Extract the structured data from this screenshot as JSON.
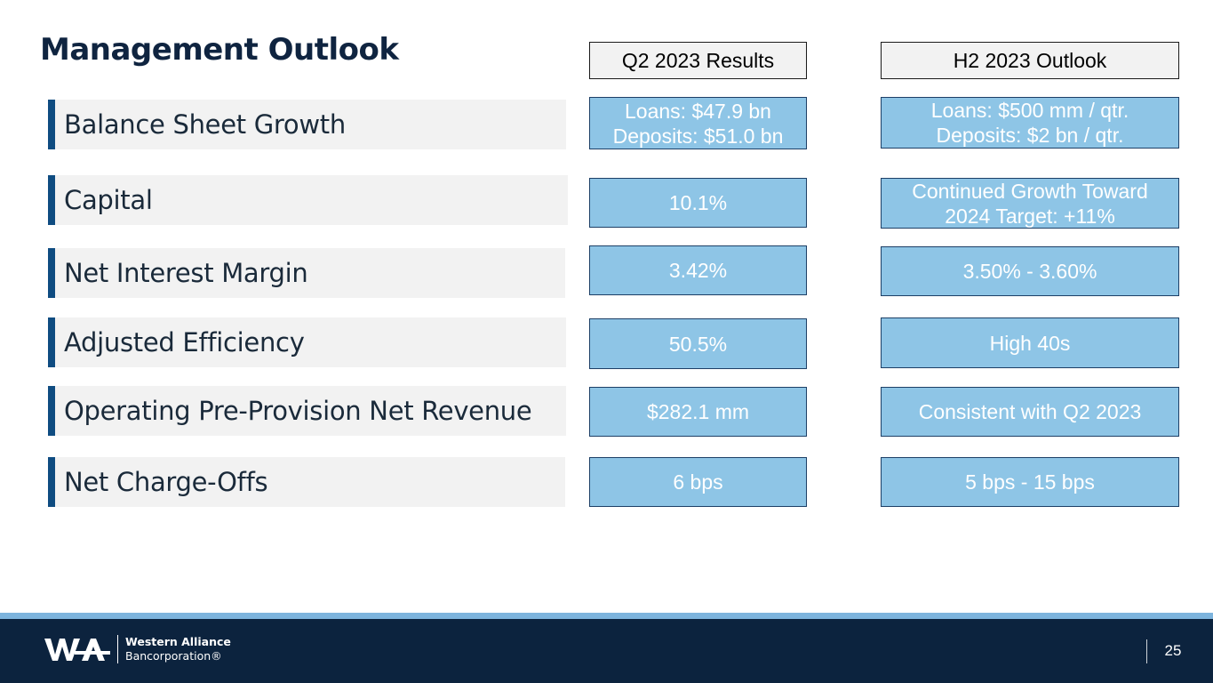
{
  "title": "Management Outlook",
  "columns": {
    "results": "Q2 2023 Results",
    "outlook": "H2 2023 Outlook"
  },
  "rows": [
    {
      "label": "Balance Sheet Growth",
      "results": [
        "Loans: $47.9 bn",
        "Deposits: $51.0 bn"
      ],
      "outlook": [
        "Loans: $500 mm / qtr.",
        "Deposits: $2 bn / qtr."
      ]
    },
    {
      "label": "Capital",
      "results": [
        "10.1%"
      ],
      "outlook": [
        "Continued Growth Toward",
        "2024 Target: +11%"
      ]
    },
    {
      "label": "Net Interest Margin",
      "results": [
        "3.42%"
      ],
      "outlook": [
        "3.50% - 3.60%"
      ]
    },
    {
      "label": "Adjusted Efficiency",
      "results": [
        "50.5%"
      ],
      "outlook": [
        "High 40s"
      ]
    },
    {
      "label": "Operating Pre-Provision Net Revenue",
      "results": [
        "$282.1 mm"
      ],
      "outlook": [
        "Consistent with Q2 2023"
      ]
    },
    {
      "label": "Net Charge-Offs",
      "results": [
        "6 bps"
      ],
      "outlook": [
        "5 bps - 15 bps"
      ]
    }
  ],
  "footer": {
    "company_line1": "Western Alliance",
    "company_line2": "Bancorporation®",
    "page_number": "25",
    "logo_icon": "wa-logo-icon"
  },
  "colors": {
    "navy": "#0c233e",
    "accent_bar": "#0f4c81",
    "cell_fill": "#8ec5e6",
    "stripe": "#7db4dd"
  }
}
